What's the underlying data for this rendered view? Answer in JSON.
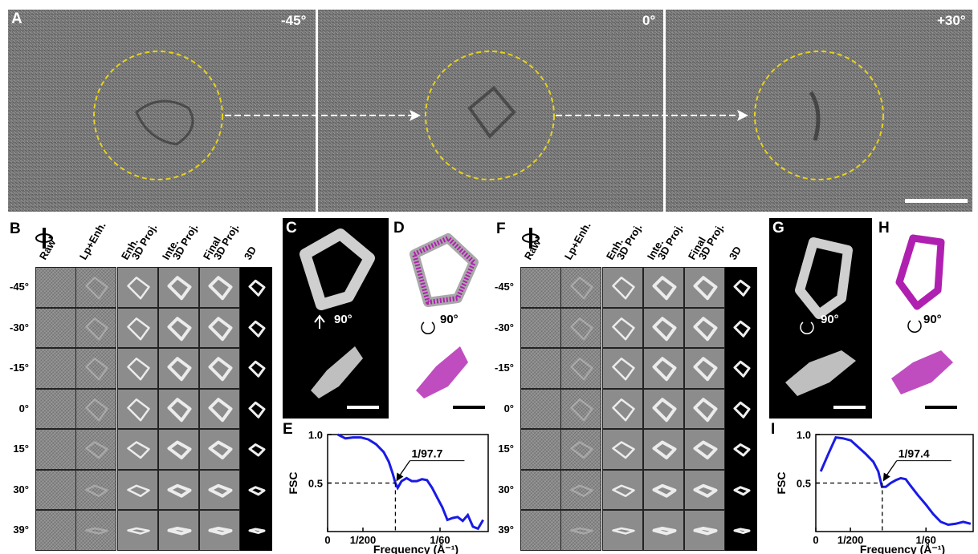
{
  "panel_a": {
    "letter": "A",
    "frames": [
      {
        "angle": "-45°"
      },
      {
        "angle": "0°"
      },
      {
        "angle": "+30°"
      }
    ]
  },
  "panel_b": {
    "letter": "B",
    "columns": [
      "Raw",
      "Lp+Enh.",
      "Enh.\n3D Proj.",
      "Inte.\n3D Proj.",
      "Final\n3D Proj.",
      "3D"
    ],
    "rows": [
      "-45°",
      "-30°",
      "-15°",
      "0°",
      "15°",
      "30°",
      "39°"
    ]
  },
  "panel_c": {
    "letter": "C",
    "rotation": "90°"
  },
  "panel_d": {
    "letter": "D",
    "rotation": "90°"
  },
  "panel_e": {
    "letter": "E",
    "chart_data": {
      "type": "line",
      "ylabel": "FSC",
      "xlabel": "Frequency (Å⁻¹)",
      "yticks": [
        "0.5",
        "1.0"
      ],
      "xticks": [
        "0",
        "1/200",
        "1/60"
      ],
      "annotation": "1/97.7",
      "series": [
        {
          "values": [
            [
              0.004,
              1.0
            ],
            [
              0.007,
              0.96
            ],
            [
              0.01,
              0.97
            ],
            [
              0.013,
              0.97
            ],
            [
              0.016,
              0.95
            ],
            [
              0.019,
              0.9
            ],
            [
              0.022,
              0.82
            ],
            [
              0.024,
              0.72
            ],
            [
              0.0255,
              0.6
            ],
            [
              0.0266,
              0.5
            ],
            [
              0.0275,
              0.45
            ],
            [
              0.029,
              0.52
            ],
            [
              0.031,
              0.55
            ],
            [
              0.033,
              0.52
            ],
            [
              0.035,
              0.52
            ],
            [
              0.037,
              0.54
            ],
            [
              0.039,
              0.53
            ],
            [
              0.041,
              0.45
            ],
            [
              0.043,
              0.35
            ],
            [
              0.045,
              0.25
            ],
            [
              0.047,
              0.12
            ],
            [
              0.049,
              0.14
            ],
            [
              0.051,
              0.15
            ],
            [
              0.053,
              0.11
            ],
            [
              0.055,
              0.17
            ],
            [
              0.057,
              0.05
            ],
            [
              0.059,
              0.03
            ],
            [
              0.061,
              0.12
            ]
          ]
        }
      ]
    }
  },
  "panel_f": {
    "letter": "F",
    "columns": [
      "Raw",
      "Lp+Enh.",
      "Enh.\n3D Proj.",
      "Inte.\n3D Proj.",
      "Final\n3D Proj.",
      "3D"
    ],
    "rows": [
      "-45°",
      "-30°",
      "-15°",
      "0°",
      "15°",
      "30°",
      "39°"
    ]
  },
  "panel_g": {
    "letter": "G",
    "rotation": "90°"
  },
  "panel_h": {
    "letter": "H",
    "rotation": "90°"
  },
  "panel_i": {
    "letter": "I",
    "chart_data": {
      "type": "line",
      "ylabel": "FSC",
      "xlabel": "Frequency (Å⁻¹)",
      "yticks": [
        "0.5",
        "1.0"
      ],
      "xticks": [
        "0",
        "1/200",
        "1/60"
      ],
      "annotation": "1/97.4",
      "series": [
        {
          "values": [
            [
              0.002,
              0.62
            ],
            [
              0.005,
              0.8
            ],
            [
              0.008,
              0.97
            ],
            [
              0.011,
              0.96
            ],
            [
              0.014,
              0.94
            ],
            [
              0.017,
              0.87
            ],
            [
              0.02,
              0.8
            ],
            [
              0.023,
              0.72
            ],
            [
              0.025,
              0.62
            ],
            [
              0.0265,
              0.46
            ],
            [
              0.028,
              0.46
            ],
            [
              0.03,
              0.5
            ],
            [
              0.032,
              0.53
            ],
            [
              0.034,
              0.55
            ],
            [
              0.036,
              0.54
            ],
            [
              0.038,
              0.47
            ],
            [
              0.041,
              0.37
            ],
            [
              0.044,
              0.28
            ],
            [
              0.047,
              0.18
            ],
            [
              0.05,
              0.1
            ],
            [
              0.053,
              0.07
            ],
            [
              0.056,
              0.08
            ],
            [
              0.059,
              0.1
            ],
            [
              0.062,
              0.08
            ]
          ]
        }
      ]
    }
  },
  "colors": {
    "circle": "#e6d21e",
    "curve": "#1a1ae6",
    "mesh": "#b020b0"
  }
}
